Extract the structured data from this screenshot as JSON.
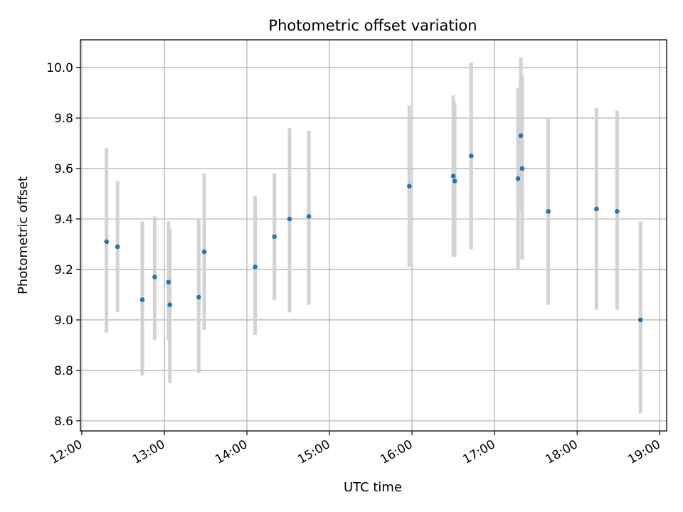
{
  "chart_data": {
    "type": "scatter",
    "title": "Photometric offset variation",
    "xlabel": "UTC time",
    "ylabel": "Photometric offset",
    "x_ticks": [
      "12:00",
      "13:00",
      "14:00",
      "15:00",
      "16:00",
      "17:00",
      "18:00",
      "19:00"
    ],
    "y_ticks": [
      "8.6",
      "8.8",
      "9.0",
      "9.2",
      "9.4",
      "9.6",
      "9.8",
      "10.0"
    ],
    "xlim": [
      "11:59",
      "19:05"
    ],
    "ylim": [
      8.56,
      10.11
    ],
    "grid": true,
    "marker_color": "#1f77b4",
    "errorbar_color": "#d3d3d3",
    "series": [
      {
        "points": [
          {
            "x": "12:18",
            "y": 9.31,
            "ylow": 8.95,
            "yhigh": 9.68
          },
          {
            "x": "12:26",
            "y": 9.29,
            "ylow": 9.03,
            "yhigh": 9.55
          },
          {
            "x": "12:44",
            "y": 9.08,
            "ylow": 8.78,
            "yhigh": 9.39
          },
          {
            "x": "12:53",
            "y": 9.17,
            "ylow": 8.92,
            "yhigh": 9.41
          },
          {
            "x": "13:03",
            "y": 9.15,
            "ylow": 8.92,
            "yhigh": 9.39
          },
          {
            "x": "13:04",
            "y": 9.06,
            "ylow": 8.75,
            "yhigh": 9.36
          },
          {
            "x": "13:25",
            "y": 9.09,
            "ylow": 8.79,
            "yhigh": 9.4
          },
          {
            "x": "13:29",
            "y": 9.27,
            "ylow": 8.96,
            "yhigh": 9.58
          },
          {
            "x": "14:06",
            "y": 9.21,
            "ylow": 8.94,
            "yhigh": 9.49
          },
          {
            "x": "14:20",
            "y": 9.33,
            "ylow": 9.08,
            "yhigh": 9.58
          },
          {
            "x": "14:31",
            "y": 9.4,
            "ylow": 9.03,
            "yhigh": 9.76
          },
          {
            "x": "14:45",
            "y": 9.41,
            "ylow": 9.06,
            "yhigh": 9.75
          },
          {
            "x": "15:58",
            "y": 9.53,
            "ylow": 9.21,
            "yhigh": 9.85
          },
          {
            "x": "16:30",
            "y": 9.57,
            "ylow": 9.25,
            "yhigh": 9.89
          },
          {
            "x": "16:31",
            "y": 9.55,
            "ylow": 9.25,
            "yhigh": 9.86
          },
          {
            "x": "16:43",
            "y": 9.65,
            "ylow": 9.28,
            "yhigh": 10.02
          },
          {
            "x": "17:17",
            "y": 9.56,
            "ylow": 9.2,
            "yhigh": 9.92
          },
          {
            "x": "17:19",
            "y": 9.73,
            "ylow": 9.43,
            "yhigh": 10.04
          },
          {
            "x": "17:20",
            "y": 9.6,
            "ylow": 9.24,
            "yhigh": 9.97
          },
          {
            "x": "17:39",
            "y": 9.43,
            "ylow": 9.06,
            "yhigh": 9.8
          },
          {
            "x": "18:14",
            "y": 9.44,
            "ylow": 9.04,
            "yhigh": 9.84
          },
          {
            "x": "18:29",
            "y": 9.43,
            "ylow": 9.04,
            "yhigh": 9.83
          },
          {
            "x": "18:46",
            "y": 9.0,
            "ylow": 8.63,
            "yhigh": 9.39
          }
        ]
      }
    ]
  }
}
